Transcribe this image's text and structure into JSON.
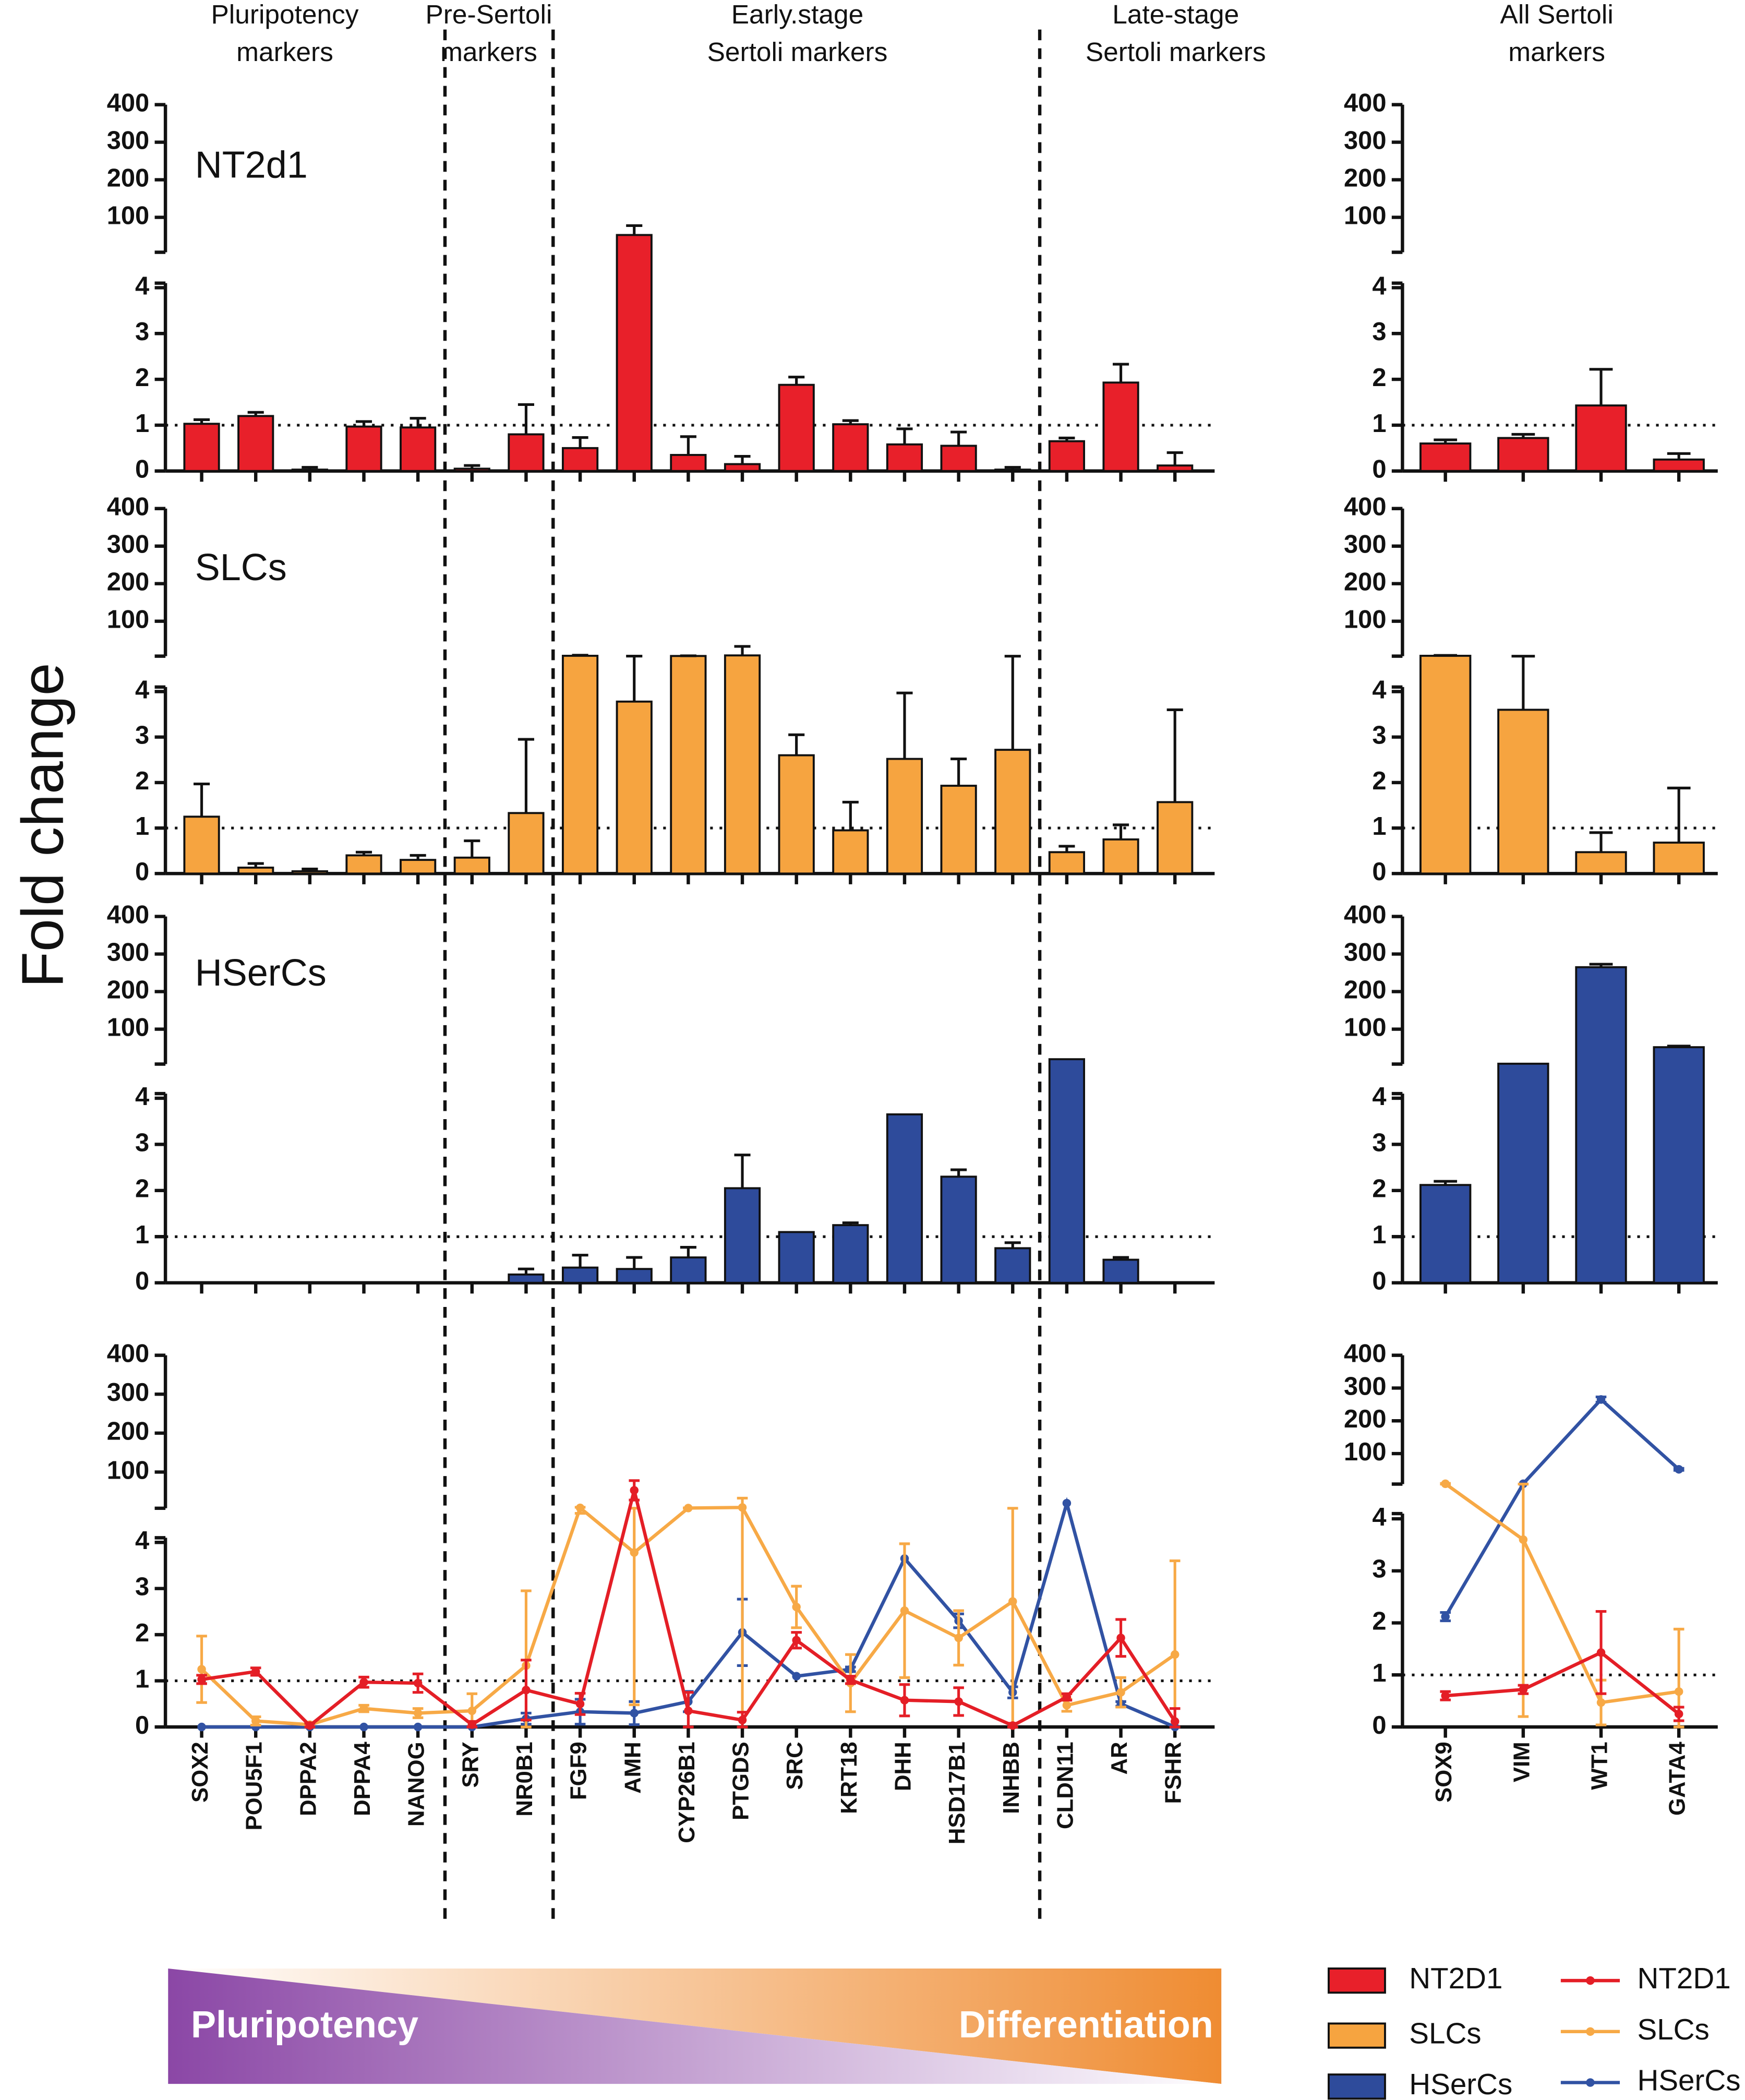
{
  "figure": {
    "ylabel": "Fold change",
    "panel_labels": [
      "NT2d1",
      "SLCs",
      "HSerCs"
    ],
    "gradient_labels": [
      "Pluripotency",
      "Differentiation"
    ]
  },
  "legend": {
    "position": "lower right"
  },
  "chart_data": [
    {
      "type": "bar",
      "line_panel": true,
      "section_titles": [
        [
          "Pluripotency",
          "markers"
        ],
        [
          "Pre-Sertoli",
          "markers"
        ],
        [
          "Early.stage",
          "Sertoli markers"
        ],
        [
          "Late-stage",
          "Sertoli markers"
        ]
      ],
      "categories": [
        "SOX2",
        "POU5F1",
        "DPPA2",
        "DPPA4",
        "NANOG",
        "SRY",
        "NR0B1",
        "FGF9",
        "AMH",
        "CYP26B1",
        "PTGDS",
        "SRC",
        "KRT18",
        "DHH",
        "HSD17B1",
        "INHBB",
        "CLDN11",
        "AR",
        "FSHR"
      ],
      "series": [
        {
          "name": "NT2D1",
          "color": "#e8202a",
          "line_color": "#e41e26",
          "values": [
            1.03,
            1.2,
            0.03,
            0.97,
            0.95,
            0.05,
            0.8,
            0.5,
            53,
            0.35,
            0.15,
            1.88,
            1.02,
            0.58,
            0.55,
            0.03,
            0.65,
            1.93,
            0.12
          ],
          "errors": [
            0.09,
            0.08,
            0.05,
            0.11,
            0.2,
            0.07,
            0.65,
            0.23,
            25,
            0.4,
            0.17,
            0.17,
            0.08,
            0.34,
            0.3,
            0.05,
            0.07,
            0.4,
            0.28
          ]
        },
        {
          "name": "SLCs",
          "color": "#f6a440",
          "line_color": "#f7a946",
          "values": [
            1.25,
            0.13,
            0.05,
            0.4,
            0.3,
            0.35,
            1.33,
            8,
            3.78,
            7.5,
            9,
            2.6,
            0.95,
            2.52,
            1.93,
            2.72,
            0.47,
            0.75,
            1.57
          ],
          "errors": [
            0.72,
            0.09,
            0.05,
            0.07,
            0.1,
            0.37,
            1.62,
            1.5,
            3.3,
            0.5,
            24,
            0.45,
            0.62,
            1.45,
            0.59,
            4.28,
            0.13,
            0.32,
            2.03
          ]
        },
        {
          "name": "HSerCs",
          "color": "#2e4b9b",
          "line_color": "#3152a3",
          "values": [
            0,
            0,
            0,
            0,
            0,
            0,
            0.18,
            0.33,
            0.3,
            0.55,
            2.05,
            1.1,
            1.25,
            3.65,
            2.3,
            0.75,
            20,
            0.5,
            0
          ],
          "errors": [
            0,
            0,
            0,
            0,
            0,
            0,
            0.12,
            0.27,
            0.25,
            0.22,
            0.72,
            0,
            0.05,
            0,
            0.15,
            0.12,
            0,
            0.05,
            0
          ]
        }
      ],
      "ylim": [
        0,
        400
      ],
      "axis_break": [
        4.1,
        7
      ],
      "yticks": [
        0,
        1,
        2,
        3,
        4,
        100,
        200,
        300,
        400
      ],
      "reference_line": 1
    },
    {
      "type": "bar",
      "line_panel": true,
      "section_titles": [
        [
          "All Sertoli",
          "markers"
        ]
      ],
      "categories": [
        "SOX9",
        "VIM",
        "WT1",
        "GATA4"
      ],
      "series": [
        {
          "color": "#e8202a",
          "line_color": "#e41e26",
          "values": [
            0.6,
            0.72,
            1.43,
            0.25
          ],
          "errors": [
            0.08,
            0.08,
            0.79,
            0.13
          ]
        },
        {
          "color": "#f6a440",
          "line_color": "#f7a946",
          "values": [
            8,
            3.6,
            0.47,
            0.68
          ],
          "errors": [
            1,
            3.4,
            0.43,
            1.2
          ]
        },
        {
          "color": "#2e4b9b",
          "line_color": "#3152a3",
          "values": [
            2.12,
            8,
            265,
            52
          ],
          "errors": [
            0.08,
            0,
            8,
            3
          ]
        }
      ],
      "ylim": [
        0,
        400
      ],
      "axis_break": [
        4.1,
        7
      ],
      "yticks": [
        0,
        1,
        2,
        3,
        4,
        100,
        200,
        300,
        400
      ],
      "reference_line": 1
    }
  ]
}
